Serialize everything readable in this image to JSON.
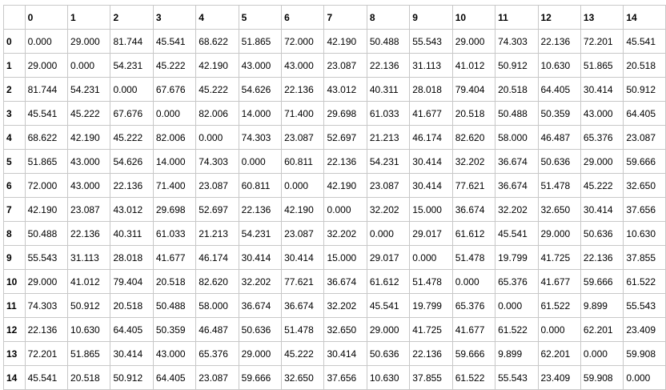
{
  "chart_data": {
    "type": "table",
    "header_corner": "",
    "columns": [
      "0",
      "1",
      "2",
      "3",
      "4",
      "5",
      "6",
      "7",
      "8",
      "9",
      "10",
      "11",
      "12",
      "13",
      "14"
    ],
    "rows": [
      {
        "label": "0",
        "values": [
          "0.000",
          "29.000",
          "81.744",
          "45.541",
          "68.622",
          "51.865",
          "72.000",
          "42.190",
          "50.488",
          "55.543",
          "29.000",
          "74.303",
          "22.136",
          "72.201",
          "45.541"
        ]
      },
      {
        "label": "1",
        "values": [
          "29.000",
          "0.000",
          "54.231",
          "45.222",
          "42.190",
          "43.000",
          "43.000",
          "23.087",
          "22.136",
          "31.113",
          "41.012",
          "50.912",
          "10.630",
          "51.865",
          "20.518"
        ]
      },
      {
        "label": "2",
        "values": [
          "81.744",
          "54.231",
          "0.000",
          "67.676",
          "45.222",
          "54.626",
          "22.136",
          "43.012",
          "40.311",
          "28.018",
          "79.404",
          "20.518",
          "64.405",
          "30.414",
          "50.912"
        ]
      },
      {
        "label": "3",
        "values": [
          "45.541",
          "45.222",
          "67.676",
          "0.000",
          "82.006",
          "14.000",
          "71.400",
          "29.698",
          "61.033",
          "41.677",
          "20.518",
          "50.488",
          "50.359",
          "43.000",
          "64.405"
        ]
      },
      {
        "label": "4",
        "values": [
          "68.622",
          "42.190",
          "45.222",
          "82.006",
          "0.000",
          "74.303",
          "23.087",
          "52.697",
          "21.213",
          "46.174",
          "82.620",
          "58.000",
          "46.487",
          "65.376",
          "23.087"
        ]
      },
      {
        "label": "5",
        "values": [
          "51.865",
          "43.000",
          "54.626",
          "14.000",
          "74.303",
          "0.000",
          "60.811",
          "22.136",
          "54.231",
          "30.414",
          "32.202",
          "36.674",
          "50.636",
          "29.000",
          "59.666"
        ]
      },
      {
        "label": "6",
        "values": [
          "72.000",
          "43.000",
          "22.136",
          "71.400",
          "23.087",
          "60.811",
          "0.000",
          "42.190",
          "23.087",
          "30.414",
          "77.621",
          "36.674",
          "51.478",
          "45.222",
          "32.650"
        ]
      },
      {
        "label": "7",
        "values": [
          "42.190",
          "23.087",
          "43.012",
          "29.698",
          "52.697",
          "22.136",
          "42.190",
          "0.000",
          "32.202",
          "15.000",
          "36.674",
          "32.202",
          "32.650",
          "30.414",
          "37.656"
        ]
      },
      {
        "label": "8",
        "values": [
          "50.488",
          "22.136",
          "40.311",
          "61.033",
          "21.213",
          "54.231",
          "23.087",
          "32.202",
          "0.000",
          "29.017",
          "61.612",
          "45.541",
          "29.000",
          "50.636",
          "10.630"
        ]
      },
      {
        "label": "9",
        "values": [
          "55.543",
          "31.113",
          "28.018",
          "41.677",
          "46.174",
          "30.414",
          "30.414",
          "15.000",
          "29.017",
          "0.000",
          "51.478",
          "19.799",
          "41.725",
          "22.136",
          "37.855"
        ]
      },
      {
        "label": "10",
        "values": [
          "29.000",
          "41.012",
          "79.404",
          "20.518",
          "82.620",
          "32.202",
          "77.621",
          "36.674",
          "61.612",
          "51.478",
          "0.000",
          "65.376",
          "41.677",
          "59.666",
          "61.522"
        ]
      },
      {
        "label": "11",
        "values": [
          "74.303",
          "50.912",
          "20.518",
          "50.488",
          "58.000",
          "36.674",
          "36.674",
          "32.202",
          "45.541",
          "19.799",
          "65.376",
          "0.000",
          "61.522",
          "9.899",
          "55.543"
        ]
      },
      {
        "label": "12",
        "values": [
          "22.136",
          "10.630",
          "64.405",
          "50.359",
          "46.487",
          "50.636",
          "51.478",
          "32.650",
          "29.000",
          "41.725",
          "41.677",
          "61.522",
          "0.000",
          "62.201",
          "23.409"
        ]
      },
      {
        "label": "13",
        "values": [
          "72.201",
          "51.865",
          "30.414",
          "43.000",
          "65.376",
          "29.000",
          "45.222",
          "30.414",
          "50.636",
          "22.136",
          "59.666",
          "9.899",
          "62.201",
          "0.000",
          "59.908"
        ]
      },
      {
        "label": "14",
        "values": [
          "45.541",
          "20.518",
          "50.912",
          "64.405",
          "23.087",
          "59.666",
          "32.650",
          "37.656",
          "10.630",
          "37.855",
          "61.522",
          "55.543",
          "23.409",
          "59.908",
          "0.000"
        ]
      }
    ]
  }
}
